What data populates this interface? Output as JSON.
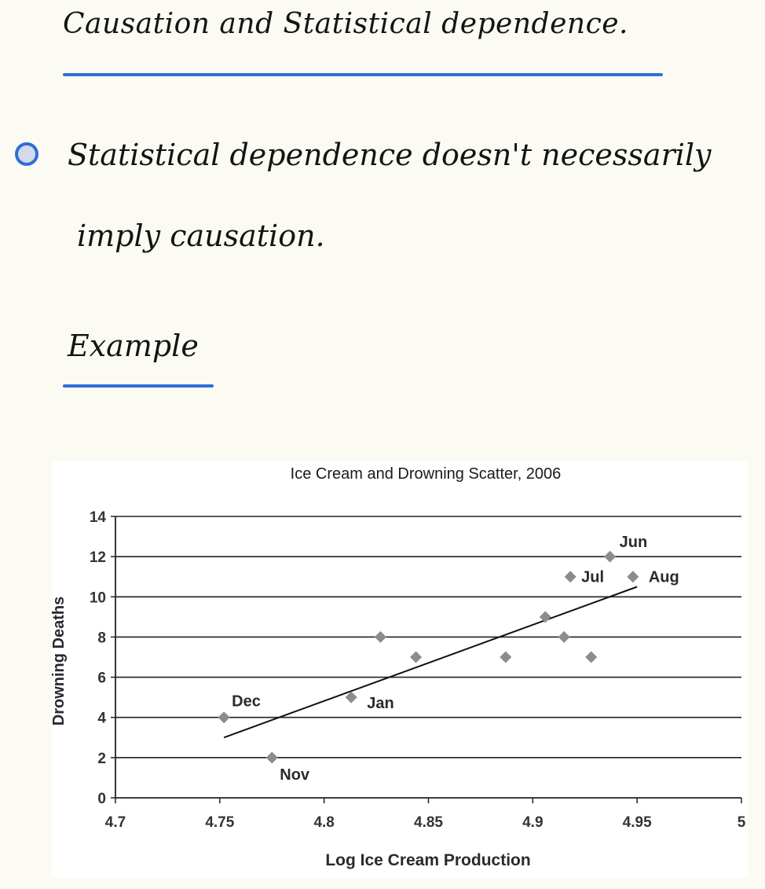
{
  "notes": {
    "heading": "Causation and Statistical dependence.",
    "bullet_line1": "Statistical dependence doesn't necessarily",
    "bullet_line2": "imply causation.",
    "example_label": "Example"
  },
  "colors": {
    "accent": "#2f6fd6",
    "marker": "#8c8c8c",
    "gridline": "#222222"
  },
  "chart_data": {
    "type": "scatter",
    "title": "Ice Cream and Drowning Scatter, 2006",
    "xlabel": "Log Ice Cream Production",
    "ylabel": "Drowning Deaths",
    "xlim": [
      4.7,
      5
    ],
    "ylim": [
      0,
      14
    ],
    "x_ticks": [
      "4.7",
      "4.75",
      "4.8",
      "4.85",
      "4.9",
      "4.95",
      "5"
    ],
    "y_ticks": [
      "0",
      "2",
      "4",
      "6",
      "8",
      "10",
      "12",
      "14"
    ],
    "grid": "horizontal",
    "marker": "diamond",
    "points": [
      {
        "x": 4.752,
        "y": 4,
        "label": "Dec"
      },
      {
        "x": 4.775,
        "y": 2,
        "label": "Nov"
      },
      {
        "x": 4.813,
        "y": 5,
        "label": "Jan"
      },
      {
        "x": 4.827,
        "y": 8,
        "label": ""
      },
      {
        "x": 4.844,
        "y": 7,
        "label": ""
      },
      {
        "x": 4.887,
        "y": 7,
        "label": ""
      },
      {
        "x": 4.906,
        "y": 9,
        "label": ""
      },
      {
        "x": 4.915,
        "y": 8,
        "label": ""
      },
      {
        "x": 4.918,
        "y": 11,
        "label": "Jul"
      },
      {
        "x": 4.928,
        "y": 7,
        "label": ""
      },
      {
        "x": 4.937,
        "y": 12,
        "label": "Jun"
      },
      {
        "x": 4.948,
        "y": 11,
        "label": "Aug"
      }
    ],
    "trendline": {
      "x": [
        4.752,
        4.95
      ],
      "y": [
        3.0,
        10.5
      ]
    }
  }
}
